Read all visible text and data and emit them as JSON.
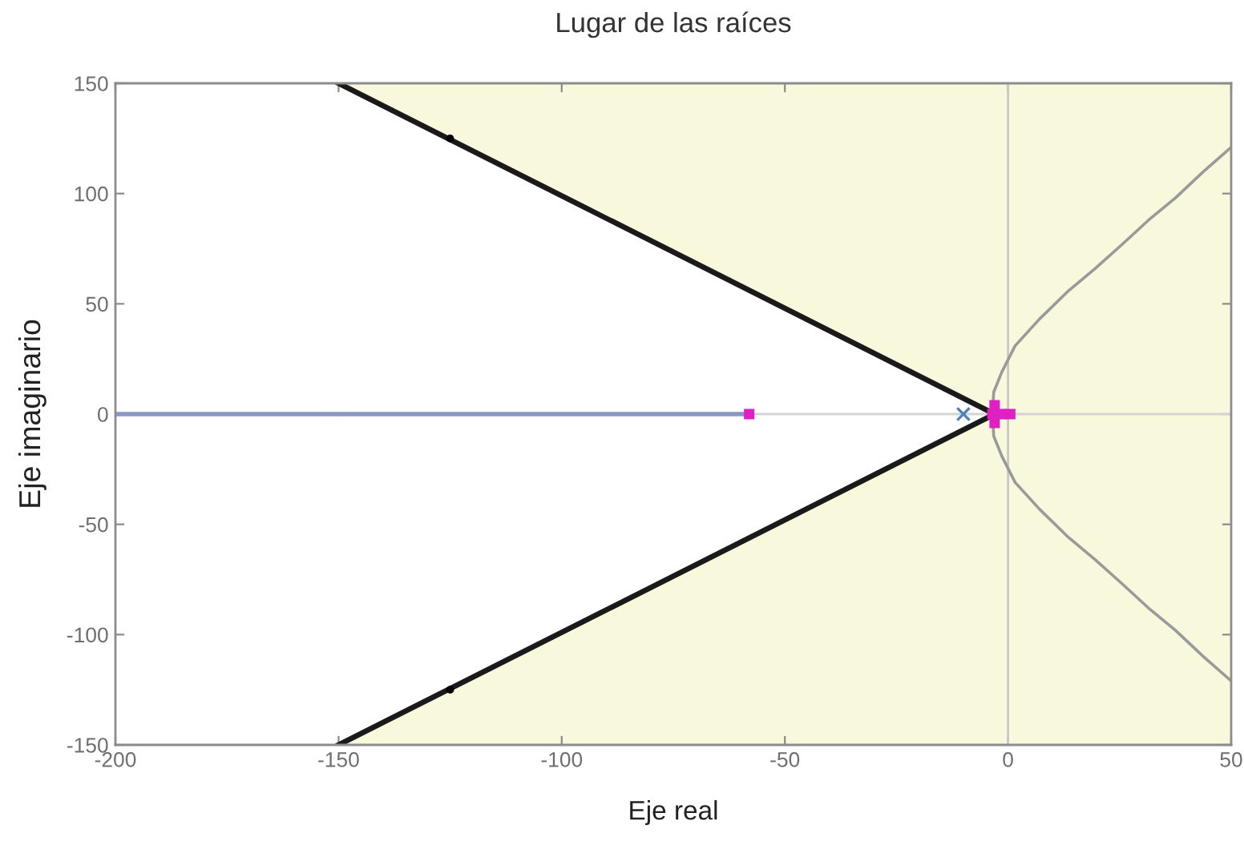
{
  "chart_data": {
    "type": "line",
    "title": "Lugar de las raíces",
    "xlabel": "Eje real",
    "ylabel": "Eje imaginario",
    "xlim": [
      -200,
      50
    ],
    "ylim": [
      -150,
      150
    ],
    "xticks": [
      -200,
      -150,
      -100,
      -50,
      0,
      50
    ],
    "yticks": [
      -150,
      -100,
      -50,
      0,
      50,
      100,
      150
    ],
    "bands": [
      {
        "axis": "x",
        "from": -150,
        "to": 50,
        "color": "#f8f8dc"
      }
    ],
    "ref_lines": [
      {
        "axis": "x",
        "value": 0,
        "color": "#c8c8c8",
        "line_style": "solid"
      },
      {
        "axis": "y",
        "value": 0,
        "color": "#d4d4d4",
        "line_style": "solid"
      }
    ],
    "series": [
      {
        "type": "area",
        "color": "#ffffff",
        "x": [
          -150,
          -3
        ],
        "values": [
          150,
          0
        ]
      },
      {
        "type": "area",
        "color": "#ffffff",
        "x": [
          -150,
          -3
        ],
        "values": [
          -150,
          0
        ]
      },
      {
        "color": "#1a1a1a",
        "x": [
          -150,
          -3,
          -150
        ],
        "values": [
          150,
          0,
          -150
        ]
      },
      {
        "color": "#8a96c4",
        "x": [
          -200,
          -58
        ],
        "values": [
          0,
          0
        ]
      },
      {
        "color": "#9a9a9a",
        "x": [
          50,
          43.8,
          37.5,
          31.5,
          25.6,
          19.5,
          13.6,
          7,
          1.6,
          -1.4,
          -3.2,
          -3.5,
          -3.2,
          -1.4,
          1.6,
          7,
          13.6,
          19.5,
          25.6,
          31.5,
          37.5,
          43.8,
          50
        ],
        "values": [
          121,
          110,
          98,
          88,
          77,
          66,
          56,
          43,
          31,
          19,
          10,
          0,
          -10,
          -19,
          -31,
          -43,
          -56,
          -66,
          -77,
          -88,
          -98,
          -110,
          -121
        ]
      },
      {
        "type": "scatter",
        "marker": "cross",
        "color": "#5080b8",
        "x": [
          -10
        ],
        "values": [
          0
        ]
      },
      {
        "type": "scatter",
        "marker": "square",
        "color": "#e020c0",
        "x": [
          -58,
          -3.5,
          -1.5,
          0.5,
          -3,
          -3
        ],
        "values": [
          0,
          0,
          0,
          0,
          4,
          -4
        ]
      },
      {
        "type": "scatter",
        "marker": "circle",
        "color": "#000000",
        "x": [
          -125,
          -125
        ],
        "values": [
          125,
          -125
        ]
      }
    ]
  }
}
